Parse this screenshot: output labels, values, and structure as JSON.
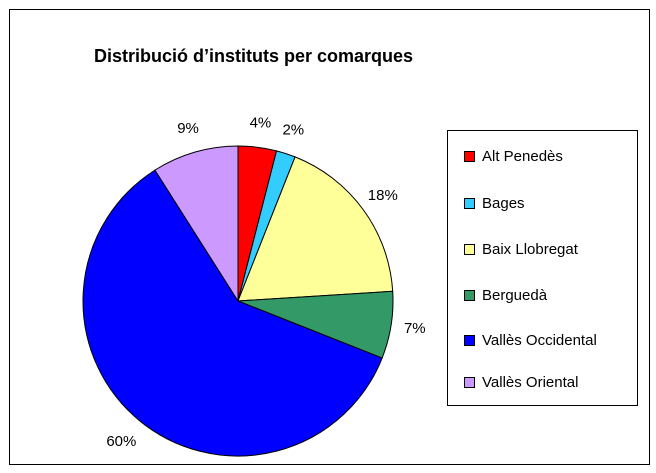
{
  "chart_data": {
    "type": "pie",
    "title": "Distribució d’instituts per comarques",
    "categories": [
      "Alt Penedès",
      "Bages",
      "Baix Llobregat",
      "Berguedà",
      "Vallès Occidental",
      "Vallès Oriental"
    ],
    "values": [
      4,
      2,
      18,
      7,
      60,
      9
    ],
    "value_labels": [
      "4%",
      "2%",
      "18%",
      "7%",
      "60%",
      "9%"
    ],
    "colors": [
      "#ff0000",
      "#33ccff",
      "#ffff99",
      "#339966",
      "#0000ff",
      "#cc99ff"
    ],
    "legend": "right"
  }
}
